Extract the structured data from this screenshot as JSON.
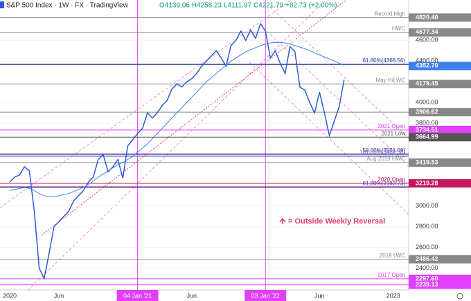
{
  "chart_data": {
    "type": "line",
    "title": "S&P 500 Index · 1W · FX · TradingView",
    "ohlc": "O4139.06 H4258.23 L4111.97 C4221.79 +82.73 (+2.00%)",
    "note": "= Outside Weekly Reversal",
    "categories": [
      "2020",
      null,
      null,
      null,
      null,
      null,
      null,
      null,
      null,
      null,
      "Jun",
      null,
      null,
      null,
      null,
      null,
      null,
      null,
      null,
      null,
      null,
      null,
      null,
      null,
      null,
      null,
      "04 Jan '21",
      null,
      null,
      null,
      null,
      null,
      null,
      null,
      null,
      null,
      null,
      "Jun",
      null,
      null,
      null,
      null,
      null,
      null,
      null,
      null,
      null,
      null,
      null,
      null,
      null,
      null,
      "03 Jan '22",
      null,
      null,
      null,
      null,
      null,
      null,
      null,
      null,
      null,
      null,
      "Jun",
      null,
      null,
      null,
      null,
      null,
      null,
      null,
      null,
      null,
      null,
      null,
      null,
      null,
      null,
      "2023",
      null,
      null,
      null
    ],
    "series": [
      {
        "color": "#2a5bd7",
        "values": [
          3230,
          3280,
          3300,
          3380,
          3340,
          2950,
          2400,
          2300,
          2540,
          2800,
          2850,
          2900,
          2950,
          3050,
          3100,
          3150,
          3230,
          3280,
          3450,
          3500,
          3330,
          3380,
          3450,
          3270,
          3580,
          3640,
          3700,
          3750,
          3900,
          3850,
          3900,
          3970,
          4020,
          4130,
          4180,
          4150,
          4200,
          4230,
          4280,
          4350,
          4400,
          4450,
          4500,
          4430,
          4350,
          4550,
          4600,
          4690,
          4600,
          4700,
          4620,
          4760,
          4690,
          4430,
          4500,
          4380,
          4280,
          4540,
          4490,
          4150,
          4120,
          4000,
          3900,
          4100,
          3900,
          3680,
          3820,
          3960,
          4220,
          null,
          null,
          null,
          null,
          null,
          null,
          null,
          null,
          null,
          null,
          null,
          null,
          null
        ]
      },
      {
        "color": "#3d7ef0",
        "last_value": 4352.7,
        "last_label": "4352.70",
        "values": [
          3150,
          3160,
          3170,
          3180,
          3170,
          3150,
          3120,
          3100,
          3090,
          3090,
          3100,
          3110,
          3120,
          3140,
          3160,
          3180,
          3210,
          3240,
          3280,
          3310,
          3340,
          3370,
          3400,
          3420,
          3450,
          3480,
          3520,
          3560,
          3600,
          3650,
          3700,
          3750,
          3800,
          3850,
          3900,
          3950,
          4000,
          4050,
          4100,
          4150,
          4200,
          4240,
          4280,
          4320,
          4360,
          4400,
          4430,
          4460,
          4490,
          4510,
          4530,
          4550,
          4565,
          4575,
          4580,
          4580,
          4575,
          4565,
          4550,
          4535,
          4520,
          4500,
          4480,
          4460,
          4440,
          4420,
          4400,
          4380,
          4360,
          null,
          null,
          null,
          null,
          null,
          null,
          null,
          null,
          null,
          null,
          null,
          null,
          null
        ]
      }
    ],
    "ylim": [
      2190,
      4990
    ],
    "yticks": [
      {
        "value": 4600,
        "label": "4600.00"
      },
      {
        "value": 4400,
        "label": "4400.00"
      },
      {
        "value": 4000,
        "label": "4000.00"
      },
      {
        "value": 3800,
        "label": "3800.00"
      },
      {
        "value": 3000,
        "label": "3000.00"
      },
      {
        "value": 2800,
        "label": "2800.00"
      },
      {
        "value": 2600,
        "label": "2600.00"
      },
      {
        "value": 2400,
        "label": "2400.00"
      }
    ],
    "levels": [
      {
        "name": "Record High",
        "value": 4820.4,
        "label": "4820.40",
        "color": "#888888"
      },
      {
        "name": "HWC",
        "value": 4677.34,
        "label": "4677.34",
        "color": "#888888"
      },
      {
        "name": "61.80%(4368.56)",
        "value": 4368.56,
        "color": "#1e3a8a"
      },
      {
        "name": "May H/LWC",
        "value": 4179.45,
        "label": "4179.45",
        "color": "#888888"
      },
      {
        "value": 3906.62,
        "label": "3906.62",
        "color": "#888888"
      },
      {
        "name": "2021 Open",
        "value": 3734.51,
        "label": "3734.51",
        "color": "#e040fb"
      },
      {
        "name": "2021 Low",
        "value": 3664.99,
        "label": "3664.99",
        "color": "#555555"
      },
      {
        "name": "50.00%(3501.09)",
        "value": 3501.09,
        "color": "#4a148c"
      },
      {
        "name": "161.80%(3482.58)",
        "value": 3482.58,
        "color": "#5c6bc0"
      },
      {
        "name": "Aug 2019 HWC",
        "value": 3419.53,
        "label": "3419.53",
        "color": "#888888"
      },
      {
        "name": "2020 Open",
        "value": 3219.28,
        "label": "3219.28",
        "color": "#c2185b"
      },
      {
        "name": "61.80%(3183.73)",
        "value": 3183.73,
        "color": "#4a148c"
      },
      {
        "name": "2018 LWC",
        "value": 2486.42,
        "label": "2486.42",
        "color": "#888888"
      },
      {
        "name": "2017 Open",
        "value": 2297.6,
        "label": "2297.60",
        "color": "#e040fb"
      },
      {
        "value": 2239.13,
        "label": "2239.13",
        "color": "#e040fb"
      }
    ],
    "grid": true
  }
}
